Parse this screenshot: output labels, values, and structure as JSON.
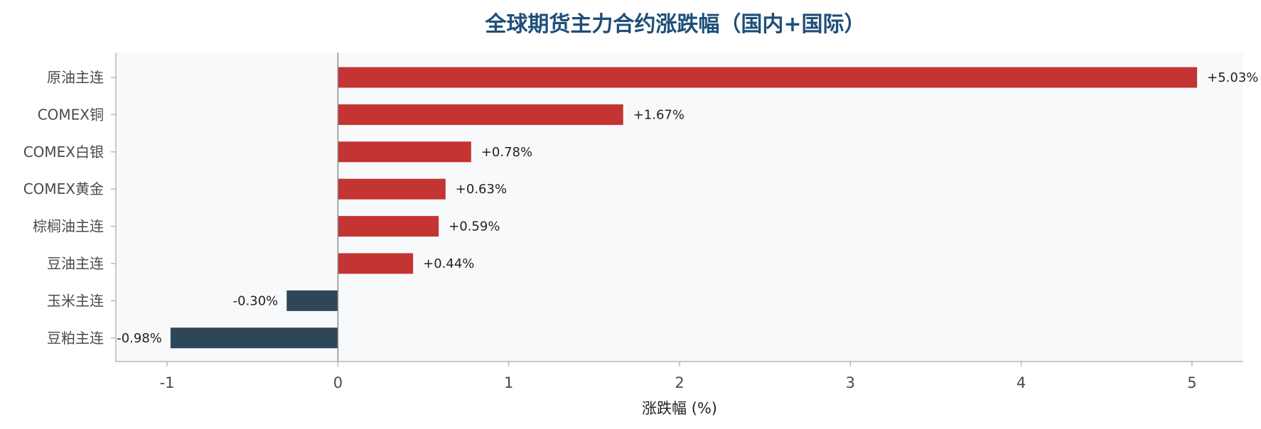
{
  "chart_data": {
    "type": "bar",
    "orientation": "horizontal",
    "title": "全球期货主力合约涨跌幅（国内+国际）",
    "xlabel": "涨跌幅 (%)",
    "ylabel": "",
    "xlim": [
      -1.3,
      5.3
    ],
    "xticks": [
      -1,
      0,
      1,
      2,
      3,
      4,
      5
    ],
    "xtick_labels": [
      "-1",
      "0",
      "1",
      "2",
      "3",
      "4",
      "5"
    ],
    "grid": false,
    "categories": [
      "原油主连",
      "COMEX铜",
      "COMEX白银",
      "COMEX黄金",
      "棕榈油主连",
      "豆油主连",
      "玉米主连",
      "豆粕主连"
    ],
    "values": [
      5.03,
      1.67,
      0.78,
      0.63,
      0.59,
      0.44,
      -0.3,
      -0.98
    ],
    "value_labels": [
      "+5.03%",
      "+1.67%",
      "+0.78%",
      "+0.63%",
      "+0.59%",
      "+0.44%",
      "-0.30%",
      "-0.98%"
    ],
    "colors": {
      "positive": "#c33432",
      "negative": "#2e4657",
      "plot_background": "#f8f9fb",
      "title": "#1f4e79",
      "axis": "#b8b8b8",
      "zero_line": "#8c8c8c"
    }
  }
}
